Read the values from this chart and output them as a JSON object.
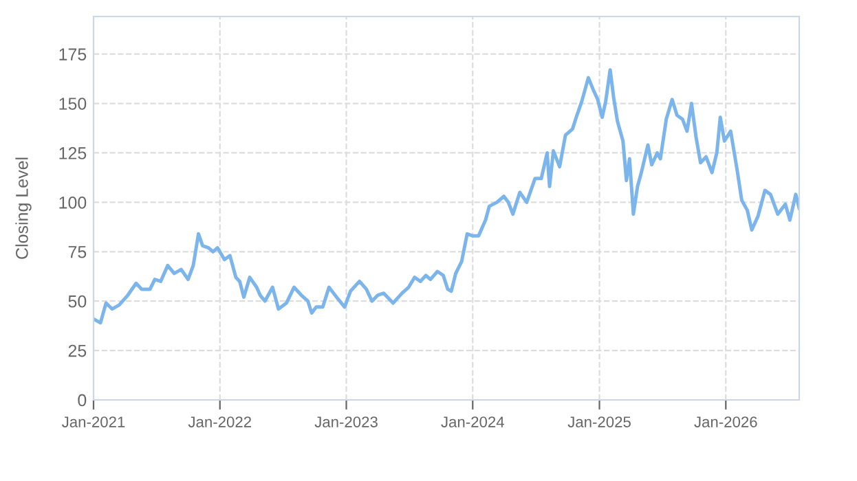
{
  "chart_data": {
    "type": "line",
    "ylabel": "Closing Level",
    "xlim": [
      "2021-01-01",
      "2026-08-01"
    ],
    "ylim": [
      0,
      194
    ],
    "xticks": [
      {
        "value": "2021-01-01",
        "label": "Jan-2021"
      },
      {
        "value": "2022-01-01",
        "label": "Jan-2022"
      },
      {
        "value": "2023-01-01",
        "label": "Jan-2023"
      },
      {
        "value": "2024-01-01",
        "label": "Jan-2024"
      },
      {
        "value": "2025-01-01",
        "label": "Jan-2025"
      },
      {
        "value": "2026-01-01",
        "label": "Jan-2026"
      }
    ],
    "yticks": [
      0,
      25,
      50,
      75,
      100,
      125,
      150,
      175
    ],
    "grid": true,
    "legend": false,
    "marker": "none",
    "line_style": "solid",
    "x": [
      "2021-01-01",
      "2021-01-21",
      "2021-02-06",
      "2021-02-24",
      "2021-03-16",
      "2021-04-10",
      "2021-05-04",
      "2021-05-20",
      "2021-06-13",
      "2021-06-27",
      "2021-07-14",
      "2021-08-03",
      "2021-08-22",
      "2021-09-11",
      "2021-10-01",
      "2021-10-16",
      "2021-10-31",
      "2021-11-12",
      "2021-11-29",
      "2021-12-12",
      "2021-12-25",
      "2022-01-14",
      "2022-01-30",
      "2022-02-16",
      "2022-02-27",
      "2022-03-11",
      "2022-03-28",
      "2022-04-17",
      "2022-04-27",
      "2022-05-11",
      "2022-06-02",
      "2022-06-19",
      "2022-07-12",
      "2022-08-03",
      "2022-08-24",
      "2022-09-12",
      "2022-09-23",
      "2022-10-06",
      "2022-10-25",
      "2022-11-12",
      "2022-12-04",
      "2022-12-27",
      "2023-01-13",
      "2023-02-08",
      "2023-02-28",
      "2023-03-16",
      "2023-04-02",
      "2023-04-19",
      "2023-05-16",
      "2023-06-11",
      "2023-06-30",
      "2023-07-17",
      "2023-08-03",
      "2023-08-19",
      "2023-09-01",
      "2023-09-21",
      "2023-10-08",
      "2023-10-21",
      "2023-10-31",
      "2023-11-13",
      "2023-11-30",
      "2023-12-16",
      "2024-01-01",
      "2024-01-18",
      "2024-02-07",
      "2024-02-18",
      "2024-03-11",
      "2024-03-31",
      "2024-04-13",
      "2024-04-26",
      "2024-05-16",
      "2024-06-05",
      "2024-06-29",
      "2024-07-17",
      "2024-08-03",
      "2024-08-10",
      "2024-08-21",
      "2024-09-08",
      "2024-09-25",
      "2024-10-15",
      "2024-10-28",
      "2024-11-11",
      "2024-11-30",
      "2024-12-14",
      "2024-12-27",
      "2025-01-09",
      "2025-01-19",
      "2025-02-01",
      "2025-02-11",
      "2025-02-22",
      "2025-03-10",
      "2025-03-20",
      "2025-03-29",
      "2025-04-09",
      "2025-04-21",
      "2025-05-02",
      "2025-05-21",
      "2025-06-01",
      "2025-06-17",
      "2025-06-26",
      "2025-07-13",
      "2025-07-30",
      "2025-08-13",
      "2025-08-29",
      "2025-09-11",
      "2025-09-24",
      "2025-10-07",
      "2025-10-20",
      "2025-11-05",
      "2025-11-22",
      "2025-12-06",
      "2025-12-16",
      "2025-12-28",
      "2026-01-15",
      "2026-02-03",
      "2026-02-16",
      "2026-03-04",
      "2026-03-17",
      "2026-04-04",
      "2026-04-24",
      "2026-05-10",
      "2026-05-31",
      "2026-06-22",
      "2026-07-05",
      "2026-07-22",
      "2026-08-01"
    ],
    "series": [
      {
        "color": "#7cb5ec",
        "values": [
          41,
          39,
          49,
          46,
          48,
          53,
          59,
          56,
          56,
          61,
          60,
          68,
          64,
          66,
          61,
          68,
          84,
          78,
          77,
          75,
          77,
          71,
          73,
          62,
          60,
          52,
          62,
          57,
          53,
          50,
          57,
          46,
          49,
          57,
          53,
          50,
          44,
          47,
          47,
          57,
          52,
          47,
          55,
          60,
          56,
          50,
          53,
          54,
          49,
          54,
          57,
          62,
          60,
          63,
          61,
          65,
          63,
          56,
          55,
          64,
          70,
          84,
          83,
          83,
          91,
          98,
          100,
          103,
          100,
          94,
          105,
          100,
          112,
          112,
          125,
          108,
          126,
          118,
          134,
          137,
          144,
          151,
          163,
          157,
          152,
          143,
          151,
          167,
          153,
          141,
          131,
          111,
          122,
          94,
          108,
          115,
          129,
          119,
          125,
          122,
          142,
          152,
          144,
          142,
          136,
          150,
          133,
          120,
          123,
          115,
          125,
          143,
          131,
          136,
          116,
          101,
          96,
          86,
          93,
          106,
          104,
          94,
          99,
          91,
          104,
          97
        ]
      }
    ]
  }
}
